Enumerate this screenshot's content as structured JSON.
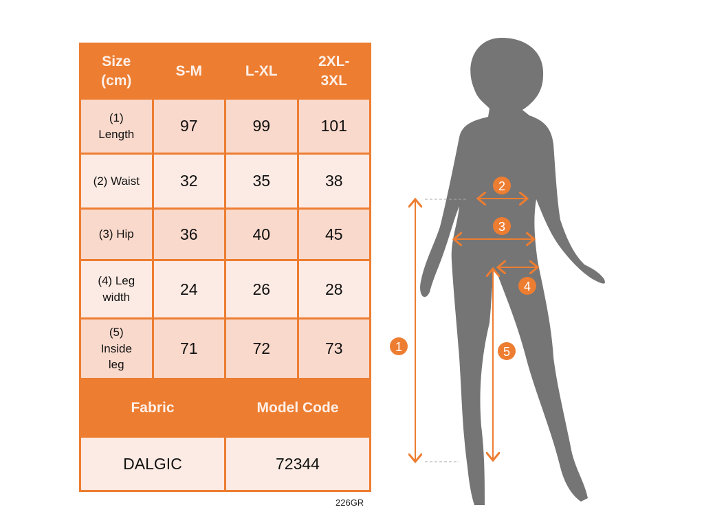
{
  "table": {
    "header": [
      "Size\n(cm)",
      "S-M",
      "L-XL",
      "2XL-\n3XL"
    ],
    "rows": [
      {
        "label": "(1)\nLength",
        "values": [
          "97",
          "99",
          "101"
        ]
      },
      {
        "label": "(2) Waist",
        "values": [
          "32",
          "35",
          "38"
        ]
      },
      {
        "label": "(3) Hip",
        "values": [
          "36",
          "40",
          "45"
        ]
      },
      {
        "label": "(4) Leg\nwidth",
        "values": [
          "24",
          "26",
          "28"
        ]
      },
      {
        "label": "(5)\nInside\nleg",
        "values": [
          "71",
          "72",
          "73"
        ]
      }
    ],
    "footer_headers": [
      "Fabric",
      "Model Code"
    ],
    "footer_values": [
      "DALGIC",
      "72344"
    ]
  },
  "code": "226GR",
  "figure": {
    "markers": [
      "1",
      "2",
      "3",
      "4",
      "5"
    ]
  },
  "colors": {
    "accent": "#ED7D31",
    "silhouette": "#757575"
  }
}
